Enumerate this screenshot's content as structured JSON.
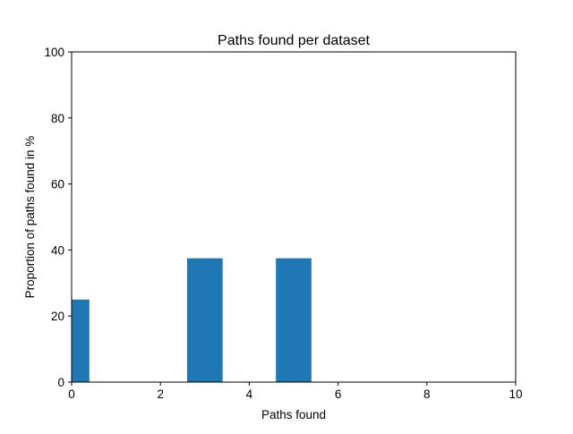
{
  "chart_data": {
    "type": "bar",
    "title": "Paths found per dataset",
    "xlabel": "Paths found",
    "ylabel": "Proportion of paths found in %",
    "xlim": [
      0,
      10
    ],
    "ylim": [
      0,
      100
    ],
    "xticks": [
      "0",
      "2",
      "4",
      "6",
      "8",
      "10"
    ],
    "yticks": [
      "0",
      "20",
      "40",
      "60",
      "80",
      "100"
    ],
    "grid": false,
    "bars": [
      {
        "x_start": 0.0,
        "x_end": 0.4,
        "value": 25
      },
      {
        "x_start": 2.6,
        "x_end": 3.4,
        "value": 37.5
      },
      {
        "x_start": 4.6,
        "x_end": 5.4,
        "value": 37.5
      }
    ],
    "colors": {
      "bar": "#1f77b4"
    }
  }
}
